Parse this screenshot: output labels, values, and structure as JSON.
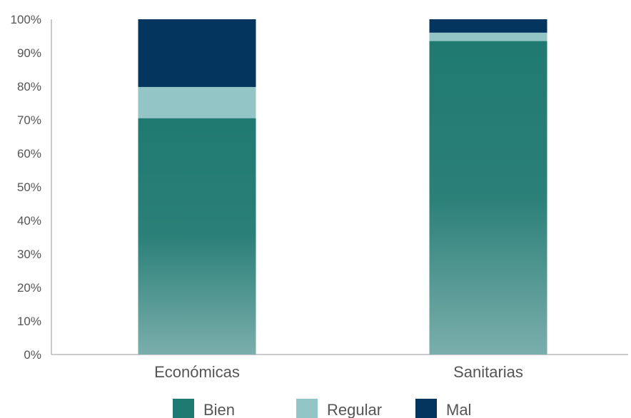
{
  "chart_data": {
    "type": "bar",
    "stacked": true,
    "categories": [
      "Económicas",
      "Sanitarias"
    ],
    "series": [
      {
        "name": "Bien",
        "values": [
          70.5,
          93.5
        ],
        "color": "#1f7a72"
      },
      {
        "name": "Regular",
        "values": [
          9.3,
          2.5
        ],
        "color": "#94c5c6"
      },
      {
        "name": "Mal",
        "values": [
          20.2,
          4.0
        ],
        "color": "#03355e"
      }
    ],
    "ylim": [
      0,
      100
    ],
    "yticks": [
      "0%",
      "10%",
      "20%",
      "30%",
      "40%",
      "50%",
      "60%",
      "70%",
      "80%",
      "90%",
      "100%"
    ],
    "grid": false,
    "legend_position": "bottom"
  }
}
